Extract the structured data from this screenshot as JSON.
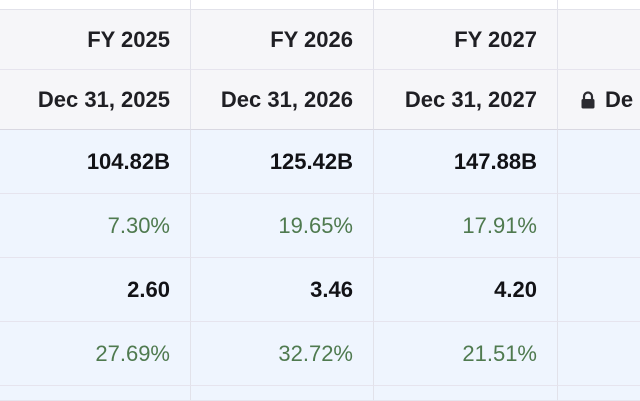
{
  "columns": [
    {
      "fiscal_year": "FY 2025",
      "period_end": "Dec 31, 2025"
    },
    {
      "fiscal_year": "FY 2026",
      "period_end": "Dec 31, 2026"
    },
    {
      "fiscal_year": "FY 2027",
      "period_end": "Dec 31, 2027"
    }
  ],
  "locked_column": {
    "period_end_partial": "De",
    "icon": "lock-icon"
  },
  "rows": [
    {
      "kind": "value",
      "values": [
        "104.82B",
        "125.42B",
        "147.88B"
      ]
    },
    {
      "kind": "growth",
      "values": [
        "7.30%",
        "19.65%",
        "17.91%"
      ]
    },
    {
      "kind": "value",
      "values": [
        "2.60",
        "3.46",
        "4.20"
      ]
    },
    {
      "kind": "growth",
      "values": [
        "27.69%",
        "32.72%",
        "21.51%"
      ]
    }
  ],
  "colors": {
    "header_bg": "#f6f6f9",
    "row_bg": "#eff5fe",
    "value_text": "#121216",
    "growth_text": "#4f7a4f",
    "grid_line": "#e2e2ea"
  }
}
